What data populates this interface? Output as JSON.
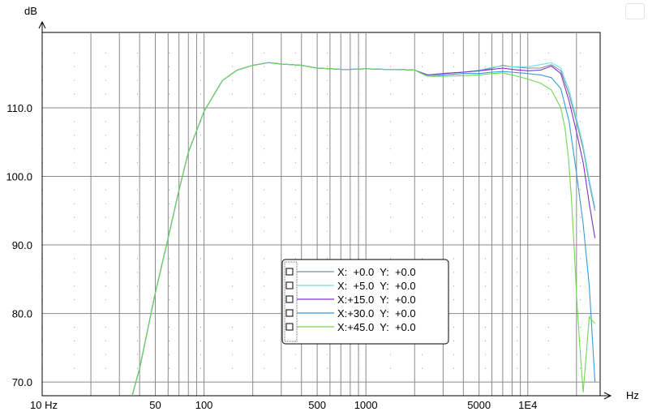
{
  "window": {
    "corner_control": ""
  },
  "chart_data": {
    "type": "line",
    "x_scale": "log",
    "xlim": [
      10,
      28000
    ],
    "ylim": [
      68,
      121
    ],
    "y_unit": "dB",
    "x_unit": "Hz",
    "x_ticks": [
      {
        "value": 10,
        "label": "10 Hz"
      },
      {
        "value": 50,
        "label": "50"
      },
      {
        "value": 100,
        "label": "100"
      },
      {
        "value": 500,
        "label": "500"
      },
      {
        "value": 1000,
        "label": "1000"
      },
      {
        "value": 5000,
        "label": "5000"
      },
      {
        "value": 10000,
        "label": "1E4"
      }
    ],
    "y_ticks": [
      {
        "value": 70,
        "label": "70.0"
      },
      {
        "value": 80,
        "label": "80.0"
      },
      {
        "value": 90,
        "label": "90.0"
      },
      {
        "value": 100,
        "label": "100.0"
      },
      {
        "value": 110,
        "label": "110.0"
      }
    ],
    "grid": true,
    "legend_position": "bottom-center",
    "series": [
      {
        "name": "X:  +0.0  Y:  +0.0",
        "color": "#7a8fa0",
        "x": [
          36,
          40,
          50,
          60,
          70,
          80,
          100,
          130,
          160,
          200,
          250,
          300,
          400,
          500,
          600,
          700,
          800,
          1000,
          1300,
          1600,
          2000,
          2400,
          3000,
          4000,
          5000,
          6000,
          7000,
          8000,
          10000,
          12000,
          14000,
          16000,
          18000,
          20000,
          22000,
          24000,
          26000
        ],
        "y": [
          68,
          72,
          83,
          91,
          98,
          103.5,
          109.5,
          114,
          115.5,
          116.2,
          116.6,
          116.4,
          116.2,
          115.8,
          115.7,
          115.6,
          115.6,
          115.7,
          115.6,
          115.6,
          115.5,
          114.8,
          115,
          115.2,
          115.4,
          115.8,
          116.2,
          116,
          115.8,
          115.8,
          116.3,
          115.4,
          112,
          108,
          104,
          99,
          95
        ]
      },
      {
        "name": "X:  +5.0  Y:  +0.0",
        "color": "#70e0e8",
        "x": [
          36,
          40,
          50,
          60,
          70,
          80,
          100,
          130,
          160,
          200,
          250,
          300,
          400,
          500,
          600,
          700,
          800,
          1000,
          1300,
          1600,
          2000,
          2400,
          3000,
          4000,
          5000,
          6000,
          7000,
          8000,
          10000,
          12000,
          14000,
          16000,
          18000,
          20000,
          22000,
          24000,
          26000
        ],
        "y": [
          68,
          72,
          83,
          91,
          98,
          103.5,
          109.5,
          114,
          115.5,
          116.2,
          116.6,
          116.4,
          116.2,
          115.8,
          115.7,
          115.6,
          115.6,
          115.7,
          115.6,
          115.6,
          115.5,
          114.8,
          115,
          115.2,
          115.5,
          115.9,
          116.1,
          116,
          116,
          116.3,
          116.6,
          115.8,
          112.6,
          108.5,
          104.5,
          99.5,
          95.5
        ]
      },
      {
        "name": "X:+15.0  Y:  +0.0",
        "color": "#8030c8",
        "x": [
          36,
          40,
          50,
          60,
          70,
          80,
          100,
          130,
          160,
          200,
          250,
          300,
          400,
          500,
          600,
          700,
          800,
          1000,
          1300,
          1600,
          2000,
          2400,
          3000,
          4000,
          5000,
          6000,
          7000,
          8000,
          10000,
          12000,
          14000,
          16000,
          18000,
          20000,
          22000,
          24000,
          26000
        ],
        "y": [
          68,
          72,
          83,
          91,
          98,
          103.5,
          109.5,
          114,
          115.5,
          116.2,
          116.6,
          116.4,
          116.2,
          115.8,
          115.7,
          115.6,
          115.6,
          115.7,
          115.6,
          115.6,
          115.5,
          114.8,
          115,
          115.2,
          115.4,
          115.6,
          115.8,
          115.6,
          115.4,
          115.5,
          116.1,
          115,
          111,
          106.5,
          102,
          96,
          91
        ]
      },
      {
        "name": "X:+30.0  Y:  +0.0",
        "color": "#3a9ad8",
        "x": [
          36,
          40,
          50,
          60,
          70,
          80,
          100,
          130,
          160,
          200,
          250,
          300,
          400,
          500,
          600,
          700,
          800,
          1000,
          1300,
          1600,
          2000,
          2400,
          3000,
          4000,
          5000,
          6000,
          7000,
          8000,
          10000,
          12000,
          14000,
          16000,
          18000,
          20000,
          22000,
          24000,
          26000
        ],
        "y": [
          68,
          72,
          83,
          91,
          98,
          103.5,
          109.5,
          114,
          115.5,
          116.2,
          116.6,
          116.4,
          116.2,
          115.8,
          115.7,
          115.6,
          115.6,
          115.7,
          115.6,
          115.6,
          115.5,
          114.6,
          114.8,
          115,
          115,
          115.2,
          115.3,
          115.2,
          115,
          114.8,
          114.4,
          112.8,
          108,
          100.5,
          93,
          84,
          70
        ]
      },
      {
        "name": "X:+45.0  Y:  +0.0",
        "color": "#70d850",
        "x": [
          36,
          40,
          50,
          60,
          70,
          80,
          100,
          130,
          160,
          200,
          250,
          300,
          400,
          500,
          600,
          700,
          800,
          1000,
          1300,
          1600,
          2000,
          2400,
          3000,
          4000,
          5000,
          6000,
          7000,
          8000,
          10000,
          12000,
          14000,
          16000,
          17000,
          17800,
          18600,
          19400,
          20200,
          21000,
          22000,
          24000,
          26000
        ],
        "y": [
          68,
          72,
          83,
          91,
          98,
          103.5,
          109.5,
          114,
          115.5,
          116.2,
          116.6,
          116.4,
          116.2,
          115.8,
          115.7,
          115.6,
          115.6,
          115.7,
          115.6,
          115.6,
          115.5,
          114.6,
          114.6,
          114.7,
          114.8,
          115,
          115.1,
          114.8,
          114.2,
          113.6,
          112.6,
          110,
          107,
          103,
          97,
          89,
          81,
          75,
          68.5,
          79.5,
          78.5
        ]
      }
    ]
  }
}
